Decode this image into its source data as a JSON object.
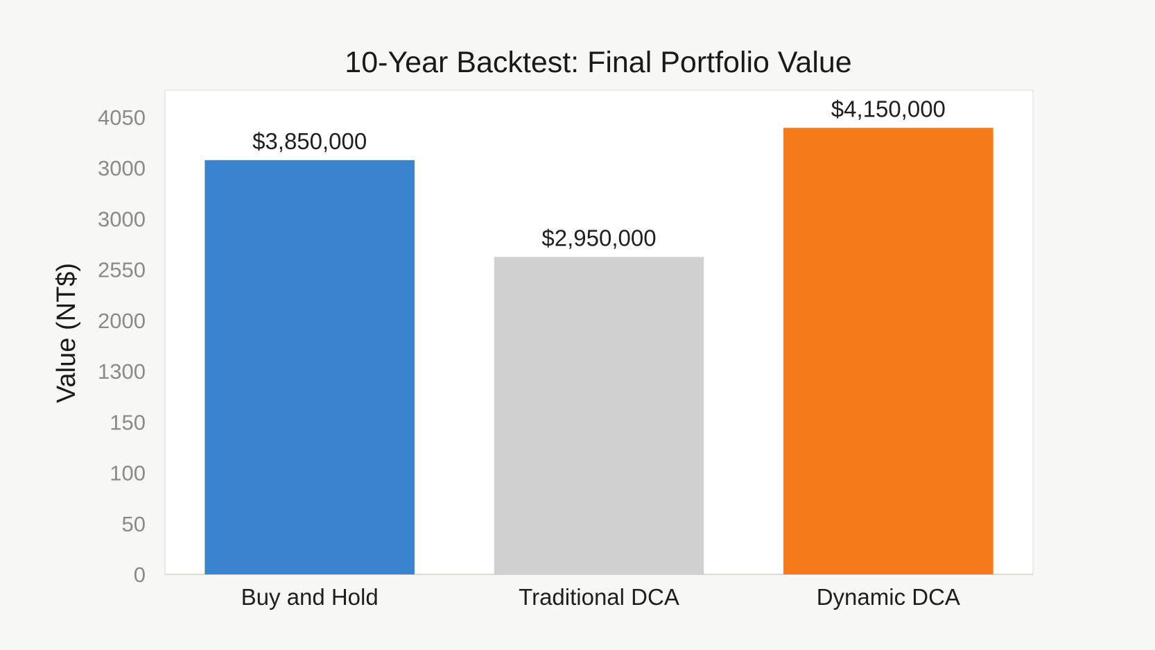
{
  "chart_data": {
    "type": "bar",
    "title": "10-Year Backtest: Final Portfolio Value",
    "xlabel": "",
    "ylabel": "Value (NT$)",
    "categories": [
      "Buy and Hold",
      "Traditional DCA",
      "Dynamic DCA"
    ],
    "values": [
      3850000,
      2950000,
      4150000
    ],
    "data_labels": [
      "$3,850,000",
      "$2,950,000",
      "$4,150,000"
    ],
    "tick_labels": [
      "0",
      "50",
      "100",
      "150",
      "1300",
      "2000",
      "2550",
      "3000",
      "3000",
      "4050"
    ],
    "ylim": [
      0,
      4500000
    ],
    "grid": false,
    "colors": [
      "#3a84cf",
      "#d0d0d0",
      "#f47a1a"
    ]
  }
}
